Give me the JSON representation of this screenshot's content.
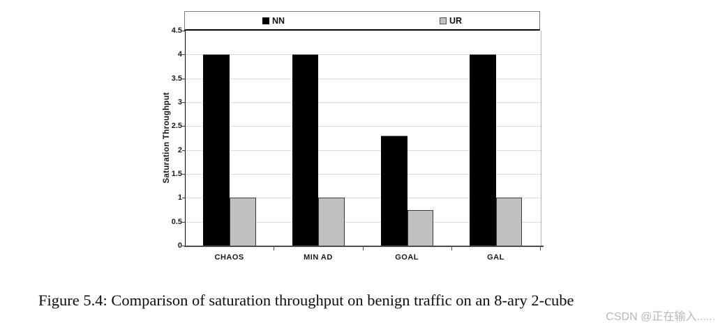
{
  "figure": {
    "caption": "Figure 5.4: Comparison of saturation throughput on benign traffic on an 8-ary 2-cube"
  },
  "watermark": "CSDN @正在输入......",
  "chart_data": {
    "type": "bar",
    "categories": [
      "CHAOS",
      "MIN AD",
      "GOAL",
      "GAL"
    ],
    "series": [
      {
        "name": "NN",
        "color": "#000000",
        "border": "#6b6b6b",
        "values": [
          4.0,
          4.0,
          2.3,
          4.0
        ]
      },
      {
        "name": "UR",
        "color": "#c0c0c0",
        "border": "#3a3a3a",
        "values": [
          1.0,
          1.0,
          0.75,
          1.0
        ]
      }
    ],
    "title": "",
    "xlabel": "",
    "ylabel": "Saturation Throughput",
    "ylim": [
      0,
      4.5
    ],
    "ytick_step": 0.5,
    "yticks": [
      "0",
      "0.5",
      "1",
      "1.5",
      "2",
      "2.5",
      "3",
      "3.5",
      "4",
      "4.5"
    ],
    "grid": true,
    "legend_position": "top",
    "gridline_color": "#dcdcdc",
    "axis_color": "#4d4d4d"
  }
}
